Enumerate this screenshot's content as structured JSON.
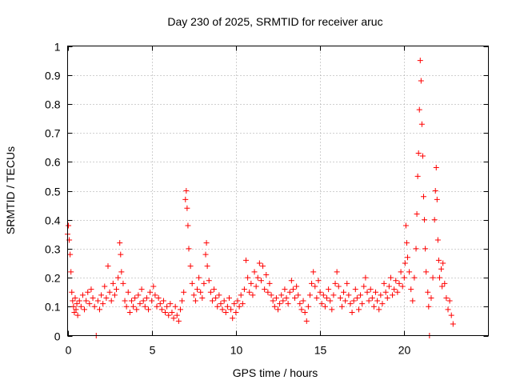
{
  "chart_data": {
    "type": "scatter",
    "title": "Day 230 of 2025, SRMTID for receiver aruc",
    "xlabel": "GPS time / hours",
    "ylabel": "SRMTID / TECUs",
    "xlim": [
      0,
      25
    ],
    "ylim": [
      0,
      1
    ],
    "grid": true,
    "marker": "+",
    "color": "#ff0000",
    "xticks": [
      0,
      5,
      10,
      15,
      20
    ],
    "xtick_labels": [
      "0",
      "5",
      "10",
      "15",
      "20"
    ],
    "yticks": [
      0,
      0.1,
      0.2,
      0.3,
      0.4,
      0.5,
      0.6,
      0.7,
      0.8,
      0.9,
      1
    ],
    "ytick_labels": [
      "0",
      "0.1",
      "0.2",
      "0.3",
      "0.4",
      "0.5",
      "0.6",
      "0.7",
      "0.8",
      "0.9",
      "1"
    ],
    "series": [
      {
        "name": "SRMTID",
        "points": [
          [
            0.0,
            0.35
          ],
          [
            0.05,
            0.38
          ],
          [
            0.1,
            0.33
          ],
          [
            0.15,
            0.28
          ],
          [
            0.2,
            0.22
          ],
          [
            0.25,
            0.15
          ],
          [
            0.3,
            0.12
          ],
          [
            0.35,
            0.1
          ],
          [
            0.4,
            0.08
          ],
          [
            0.45,
            0.13
          ],
          [
            0.5,
            0.09
          ],
          [
            0.55,
            0.11
          ],
          [
            0.6,
            0.07
          ],
          [
            0.7,
            0.12
          ],
          [
            0.8,
            0.1
          ],
          [
            0.9,
            0.14
          ],
          [
            1.0,
            0.09
          ],
          [
            1.1,
            0.12
          ],
          [
            1.2,
            0.15
          ],
          [
            1.3,
            0.11
          ],
          [
            1.4,
            0.16
          ],
          [
            1.5,
            0.13
          ],
          [
            1.6,
            0.1
          ],
          [
            1.7,
            0.0
          ],
          [
            1.8,
            0.12
          ],
          [
            1.9,
            0.09
          ],
          [
            2.0,
            0.14
          ],
          [
            2.1,
            0.11
          ],
          [
            2.2,
            0.17
          ],
          [
            2.3,
            0.13
          ],
          [
            2.4,
            0.24
          ],
          [
            2.5,
            0.15
          ],
          [
            2.6,
            0.12
          ],
          [
            2.7,
            0.18
          ],
          [
            2.8,
            0.14
          ],
          [
            2.9,
            0.16
          ],
          [
            3.0,
            0.2
          ],
          [
            3.1,
            0.32
          ],
          [
            3.15,
            0.28
          ],
          [
            3.2,
            0.22
          ],
          [
            3.3,
            0.18
          ],
          [
            3.4,
            0.12
          ],
          [
            3.5,
            0.1
          ],
          [
            3.6,
            0.15
          ],
          [
            3.7,
            0.08
          ],
          [
            3.8,
            0.12
          ],
          [
            3.9,
            0.1
          ],
          [
            4.0,
            0.13
          ],
          [
            4.1,
            0.09
          ],
          [
            4.2,
            0.14
          ],
          [
            4.3,
            0.11
          ],
          [
            4.4,
            0.16
          ],
          [
            4.5,
            0.12
          ],
          [
            4.6,
            0.1
          ],
          [
            4.7,
            0.13
          ],
          [
            4.8,
            0.09
          ],
          [
            4.9,
            0.15
          ],
          [
            5.0,
            0.12
          ],
          [
            5.1,
            0.17
          ],
          [
            5.2,
            0.14
          ],
          [
            5.3,
            0.1
          ],
          [
            5.4,
            0.13
          ],
          [
            5.5,
            0.11
          ],
          [
            5.6,
            0.09
          ],
          [
            5.7,
            0.12
          ],
          [
            5.8,
            0.08
          ],
          [
            5.9,
            0.1
          ],
          [
            6.0,
            0.07
          ],
          [
            6.1,
            0.11
          ],
          [
            6.2,
            0.08
          ],
          [
            6.3,
            0.06
          ],
          [
            6.4,
            0.1
          ],
          [
            6.5,
            0.07
          ],
          [
            6.6,
            0.05
          ],
          [
            6.7,
            0.09
          ],
          [
            6.8,
            0.12
          ],
          [
            6.9,
            0.15
          ],
          [
            7.0,
            0.47
          ],
          [
            7.05,
            0.5
          ],
          [
            7.1,
            0.44
          ],
          [
            7.15,
            0.38
          ],
          [
            7.2,
            0.3
          ],
          [
            7.3,
            0.24
          ],
          [
            7.4,
            0.18
          ],
          [
            7.5,
            0.14
          ],
          [
            7.6,
            0.12
          ],
          [
            7.7,
            0.16
          ],
          [
            7.8,
            0.2
          ],
          [
            7.9,
            0.15
          ],
          [
            8.0,
            0.13
          ],
          [
            8.1,
            0.18
          ],
          [
            8.2,
            0.28
          ],
          [
            8.25,
            0.32
          ],
          [
            8.3,
            0.24
          ],
          [
            8.4,
            0.19
          ],
          [
            8.5,
            0.15
          ],
          [
            8.6,
            0.12
          ],
          [
            8.7,
            0.16
          ],
          [
            8.8,
            0.13
          ],
          [
            8.9,
            0.1
          ],
          [
            9.0,
            0.14
          ],
          [
            9.1,
            0.11
          ],
          [
            9.2,
            0.09
          ],
          [
            9.3,
            0.12
          ],
          [
            9.4,
            0.08
          ],
          [
            9.5,
            0.1
          ],
          [
            9.6,
            0.13
          ],
          [
            9.7,
            0.09
          ],
          [
            9.8,
            0.06
          ],
          [
            9.9,
            0.11
          ],
          [
            10.0,
            0.08
          ],
          [
            10.1,
            0.12
          ],
          [
            10.2,
            0.1
          ],
          [
            10.3,
            0.14
          ],
          [
            10.4,
            0.11
          ],
          [
            10.5,
            0.16
          ],
          [
            10.6,
            0.26
          ],
          [
            10.7,
            0.2
          ],
          [
            10.8,
            0.15
          ],
          [
            10.9,
            0.18
          ],
          [
            11.0,
            0.14
          ],
          [
            11.1,
            0.22
          ],
          [
            11.2,
            0.17
          ],
          [
            11.3,
            0.2
          ],
          [
            11.4,
            0.25
          ],
          [
            11.5,
            0.19
          ],
          [
            11.6,
            0.24
          ],
          [
            11.7,
            0.16
          ],
          [
            11.8,
            0.21
          ],
          [
            11.9,
            0.15
          ],
          [
            12.0,
            0.18
          ],
          [
            12.1,
            0.14
          ],
          [
            12.2,
            0.12
          ],
          [
            12.3,
            0.1
          ],
          [
            12.4,
            0.13
          ],
          [
            12.5,
            0.09
          ],
          [
            12.6,
            0.11
          ],
          [
            12.7,
            0.14
          ],
          [
            12.8,
            0.12
          ],
          [
            12.9,
            0.16
          ],
          [
            13.0,
            0.13
          ],
          [
            13.1,
            0.11
          ],
          [
            13.2,
            0.15
          ],
          [
            13.3,
            0.19
          ],
          [
            13.4,
            0.16
          ],
          [
            13.5,
            0.13
          ],
          [
            13.6,
            0.17
          ],
          [
            13.7,
            0.14
          ],
          [
            13.8,
            0.11
          ],
          [
            13.9,
            0.09
          ],
          [
            14.0,
            0.12
          ],
          [
            14.1,
            0.08
          ],
          [
            14.2,
            0.05
          ],
          [
            14.3,
            0.1
          ],
          [
            14.4,
            0.14
          ],
          [
            14.5,
            0.18
          ],
          [
            14.6,
            0.22
          ],
          [
            14.7,
            0.17
          ],
          [
            14.8,
            0.13
          ],
          [
            14.9,
            0.19
          ],
          [
            15.0,
            0.15
          ],
          [
            15.1,
            0.11
          ],
          [
            15.2,
            0.14
          ],
          [
            15.3,
            0.1
          ],
          [
            15.4,
            0.13
          ],
          [
            15.5,
            0.16
          ],
          [
            15.6,
            0.12
          ],
          [
            15.7,
            0.09
          ],
          [
            15.8,
            0.14
          ],
          [
            15.9,
            0.18
          ],
          [
            16.0,
            0.22
          ],
          [
            16.1,
            0.17
          ],
          [
            16.2,
            0.13
          ],
          [
            16.3,
            0.1
          ],
          [
            16.4,
            0.15
          ],
          [
            16.5,
            0.12
          ],
          [
            16.6,
            0.18
          ],
          [
            16.7,
            0.14
          ],
          [
            16.8,
            0.11
          ],
          [
            16.9,
            0.08
          ],
          [
            17.0,
            0.12
          ],
          [
            17.1,
            0.16
          ],
          [
            17.2,
            0.13
          ],
          [
            17.3,
            0.09
          ],
          [
            17.4,
            0.14
          ],
          [
            17.5,
            0.11
          ],
          [
            17.6,
            0.17
          ],
          [
            17.7,
            0.2
          ],
          [
            17.8,
            0.15
          ],
          [
            17.9,
            0.12
          ],
          [
            18.0,
            0.16
          ],
          [
            18.1,
            0.13
          ],
          [
            18.2,
            0.1
          ],
          [
            18.3,
            0.15
          ],
          [
            18.4,
            0.12
          ],
          [
            18.5,
            0.09
          ],
          [
            18.6,
            0.14
          ],
          [
            18.7,
            0.11
          ],
          [
            18.8,
            0.18
          ],
          [
            18.9,
            0.15
          ],
          [
            19.0,
            0.13
          ],
          [
            19.1,
            0.17
          ],
          [
            19.2,
            0.2
          ],
          [
            19.3,
            0.14
          ],
          [
            19.4,
            0.16
          ],
          [
            19.5,
            0.19
          ],
          [
            19.6,
            0.15
          ],
          [
            19.7,
            0.18
          ],
          [
            19.8,
            0.22
          ],
          [
            19.9,
            0.17
          ],
          [
            20.0,
            0.2
          ],
          [
            20.05,
            0.25
          ],
          [
            20.1,
            0.38
          ],
          [
            20.15,
            0.32
          ],
          [
            20.2,
            0.27
          ],
          [
            20.3,
            0.22
          ],
          [
            20.4,
            0.16
          ],
          [
            20.5,
            0.12
          ],
          [
            20.6,
            0.2
          ],
          [
            20.7,
            0.3
          ],
          [
            20.75,
            0.42
          ],
          [
            20.8,
            0.55
          ],
          [
            20.85,
            0.63
          ],
          [
            20.9,
            0.78
          ],
          [
            20.95,
            0.95
          ],
          [
            21.0,
            0.88
          ],
          [
            21.05,
            0.73
          ],
          [
            21.1,
            0.62
          ],
          [
            21.15,
            0.48
          ],
          [
            21.2,
            0.4
          ],
          [
            21.25,
            0.3
          ],
          [
            21.3,
            0.22
          ],
          [
            21.4,
            0.15
          ],
          [
            21.45,
            0.1
          ],
          [
            21.5,
            0.0
          ],
          [
            21.6,
            0.13
          ],
          [
            21.7,
            0.2
          ],
          [
            21.8,
            0.4
          ],
          [
            21.85,
            0.5
          ],
          [
            21.9,
            0.58
          ],
          [
            21.95,
            0.47
          ],
          [
            22.0,
            0.33
          ],
          [
            22.05,
            0.26
          ],
          [
            22.1,
            0.2
          ],
          [
            22.2,
            0.23
          ],
          [
            22.25,
            0.17
          ],
          [
            22.3,
            0.25
          ],
          [
            22.4,
            0.18
          ],
          [
            22.5,
            0.13
          ],
          [
            22.6,
            0.09
          ],
          [
            22.7,
            0.12
          ],
          [
            22.8,
            0.07
          ],
          [
            22.9,
            0.04
          ]
        ]
      }
    ]
  }
}
